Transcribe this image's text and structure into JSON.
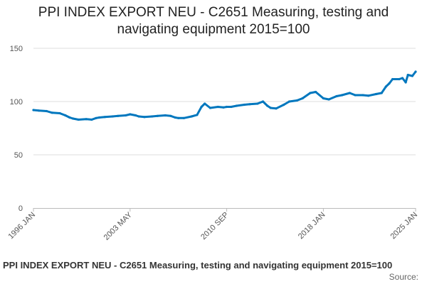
{
  "chart_data": {
    "type": "line",
    "title_line1": "PPI INDEX EXPORT NEU - C2651 Measuring, testing and",
    "title_line2": "navigating equipment 2015=100",
    "xlabel": "",
    "ylabel": "",
    "ylim": [
      0,
      150
    ],
    "yticks": [
      0,
      50,
      100,
      150
    ],
    "xlim": [
      "1996-01",
      "2025-01"
    ],
    "xtick_labels": [
      "1996 JAN",
      "2003 MAY",
      "2010 SEP",
      "2018 JAN",
      "2025 JAN"
    ],
    "grid": true,
    "color": "#0077be",
    "series": [
      {
        "name": "PPI INDEX EXPORT NEU - C2651 Measuring, testing and navigating equipment 2015=100",
        "points": [
          [
            "1996-01",
            92
          ],
          [
            "1996-06",
            91.5
          ],
          [
            "1997-01",
            91
          ],
          [
            "1997-06",
            89.5
          ],
          [
            "1998-01",
            89
          ],
          [
            "1998-06",
            87
          ],
          [
            "1998-10",
            85
          ],
          [
            "1999-01",
            84
          ],
          [
            "1999-06",
            83
          ],
          [
            "2000-01",
            83.5
          ],
          [
            "2000-06",
            83
          ],
          [
            "2000-10",
            84.5
          ],
          [
            "2001-01",
            85
          ],
          [
            "2001-06",
            85.5
          ],
          [
            "2002-01",
            86
          ],
          [
            "2002-06",
            86.5
          ],
          [
            "2003-01",
            87
          ],
          [
            "2003-05",
            88
          ],
          [
            "2003-10",
            87
          ],
          [
            "2004-01",
            86
          ],
          [
            "2004-06",
            85.5
          ],
          [
            "2005-01",
            86
          ],
          [
            "2005-06",
            86.5
          ],
          [
            "2006-01",
            87
          ],
          [
            "2006-06",
            86.5
          ],
          [
            "2006-10",
            85
          ],
          [
            "2007-01",
            84.5
          ],
          [
            "2007-06",
            84.5
          ],
          [
            "2008-01",
            86
          ],
          [
            "2008-06",
            87.5
          ],
          [
            "2008-10",
            95
          ],
          [
            "2009-01",
            98
          ],
          [
            "2009-06",
            94
          ],
          [
            "2010-01",
            95
          ],
          [
            "2010-06",
            94.5
          ],
          [
            "2010-09",
            95
          ],
          [
            "2011-01",
            95
          ],
          [
            "2011-06",
            96
          ],
          [
            "2012-01",
            97
          ],
          [
            "2012-06",
            97.5
          ],
          [
            "2013-01",
            98
          ],
          [
            "2013-06",
            100
          ],
          [
            "2013-10",
            96
          ],
          [
            "2014-01",
            94
          ],
          [
            "2014-06",
            93.5
          ],
          [
            "2015-01",
            97
          ],
          [
            "2015-06",
            100
          ],
          [
            "2016-01",
            101
          ],
          [
            "2016-06",
            103
          ],
          [
            "2017-01",
            108
          ],
          [
            "2017-06",
            109
          ],
          [
            "2018-01",
            103
          ],
          [
            "2018-06",
            102
          ],
          [
            "2019-01",
            105
          ],
          [
            "2019-06",
            106
          ],
          [
            "2020-01",
            108
          ],
          [
            "2020-06",
            106
          ],
          [
            "2021-01",
            106
          ],
          [
            "2021-06",
            105.5
          ],
          [
            "2022-01",
            107
          ],
          [
            "2022-06",
            108
          ],
          [
            "2022-10",
            114
          ],
          [
            "2023-01",
            117
          ],
          [
            "2023-04",
            121
          ],
          [
            "2023-10",
            121
          ],
          [
            "2024-01",
            122
          ],
          [
            "2024-04",
            118
          ],
          [
            "2024-06",
            125
          ],
          [
            "2024-10",
            124
          ],
          [
            "2025-01",
            128
          ]
        ]
      }
    ]
  },
  "source_label": "Source:"
}
